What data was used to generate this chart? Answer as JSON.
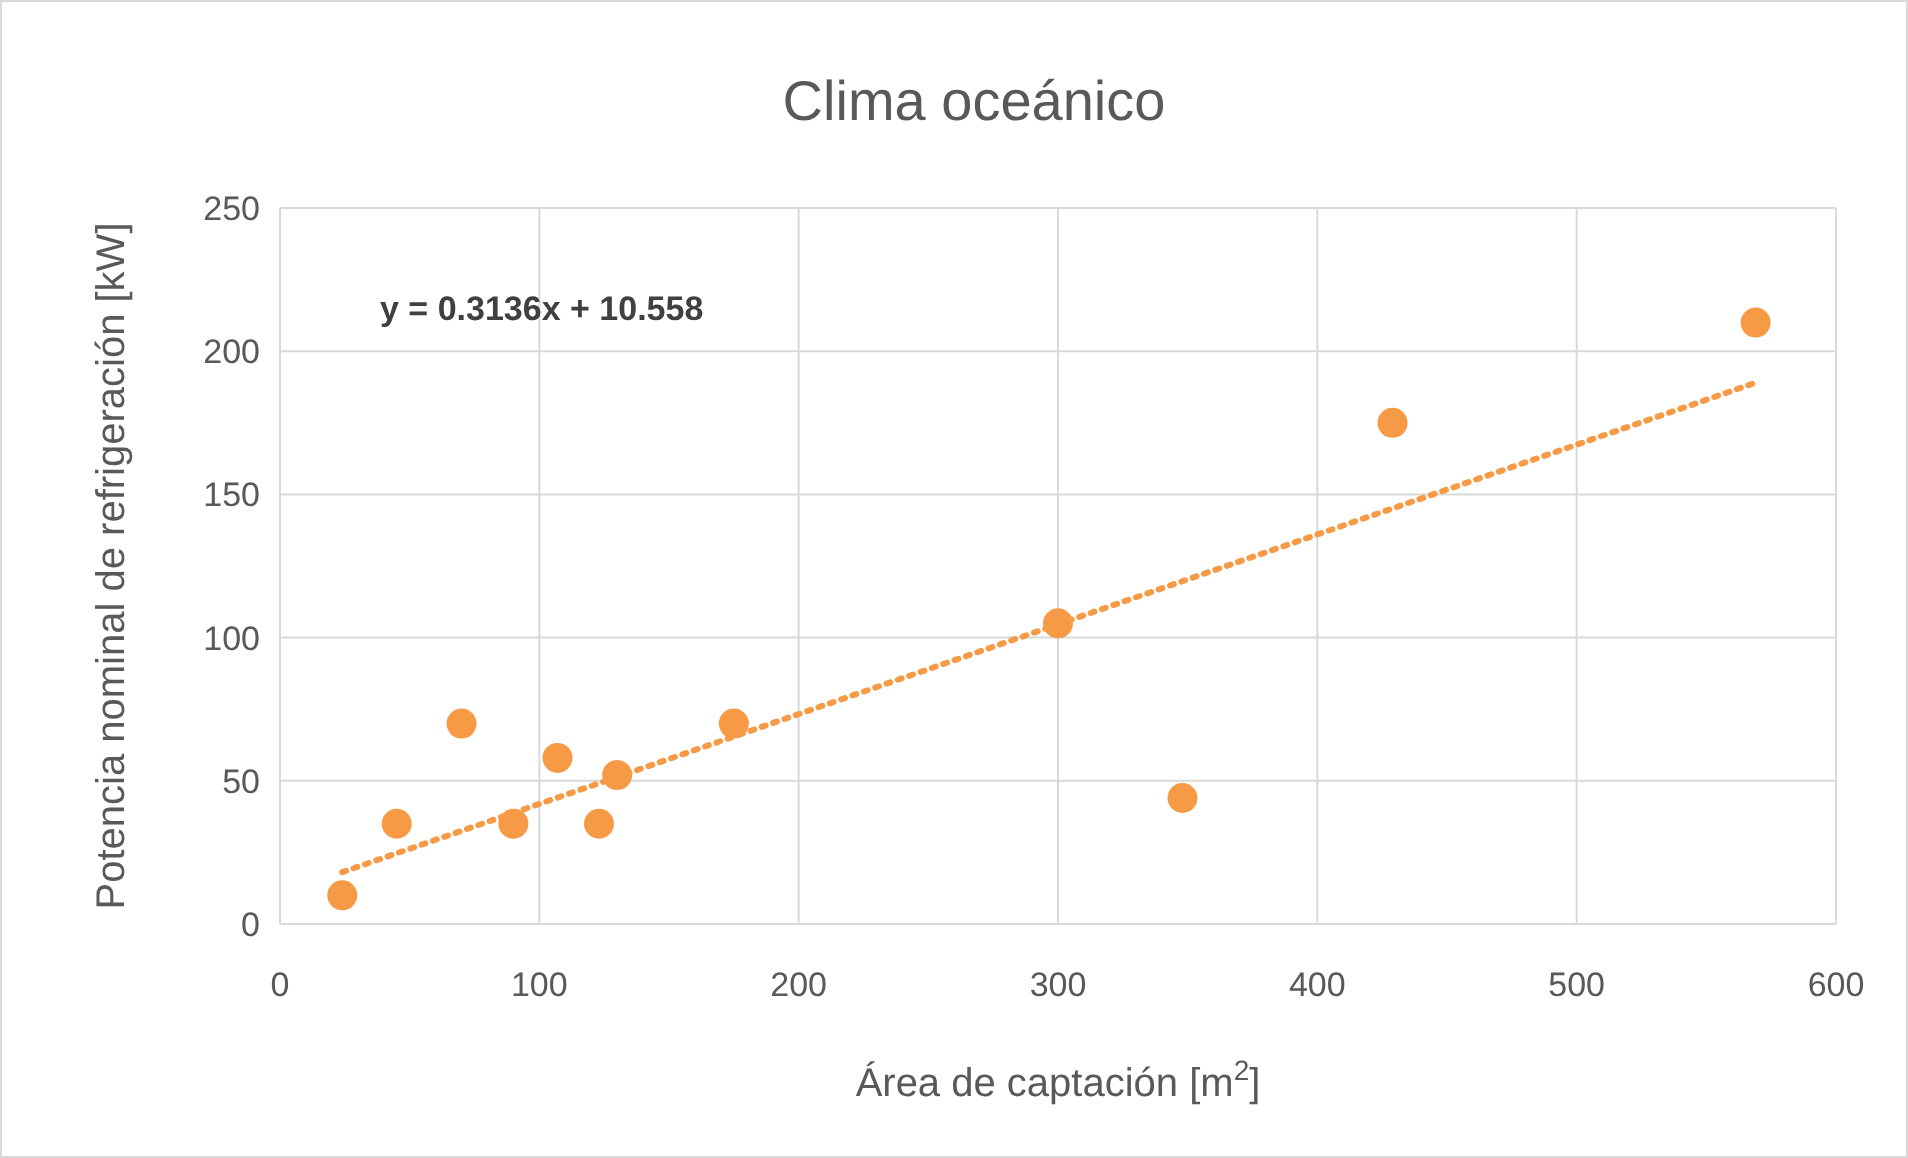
{
  "chart_data": {
    "type": "scatter",
    "title": "Clima oceánico",
    "xlabel": "Área de captación [m$^{2}$]",
    "ylabel": "Potencia nominal de refrigeración  [kW]",
    "annotations": [
      "y = 0.3136x + 10.558"
    ],
    "xlim": [
      0,
      600
    ],
    "xticks": [
      0,
      100,
      200,
      300,
      400,
      500,
      600
    ],
    "ylim": [
      0,
      250
    ],
    "yticks": [
      0,
      50,
      100,
      150,
      200,
      250
    ],
    "grid": true,
    "series": [
      {
        "type": "scatter",
        "color": "#f79a46",
        "marker": "circle",
        "x": [
          24,
          45,
          70,
          90,
          107,
          123,
          130,
          175,
          300,
          348,
          429,
          569
        ],
        "values": [
          10,
          35,
          70,
          35,
          58,
          35,
          52,
          70,
          105,
          44,
          175,
          210
        ]
      },
      {
        "type": "line",
        "color": "#f79a46",
        "line_style": "dotted",
        "marker": "none",
        "x": [
          24,
          569
        ],
        "values": [
          18.1,
          189.0
        ]
      }
    ]
  }
}
